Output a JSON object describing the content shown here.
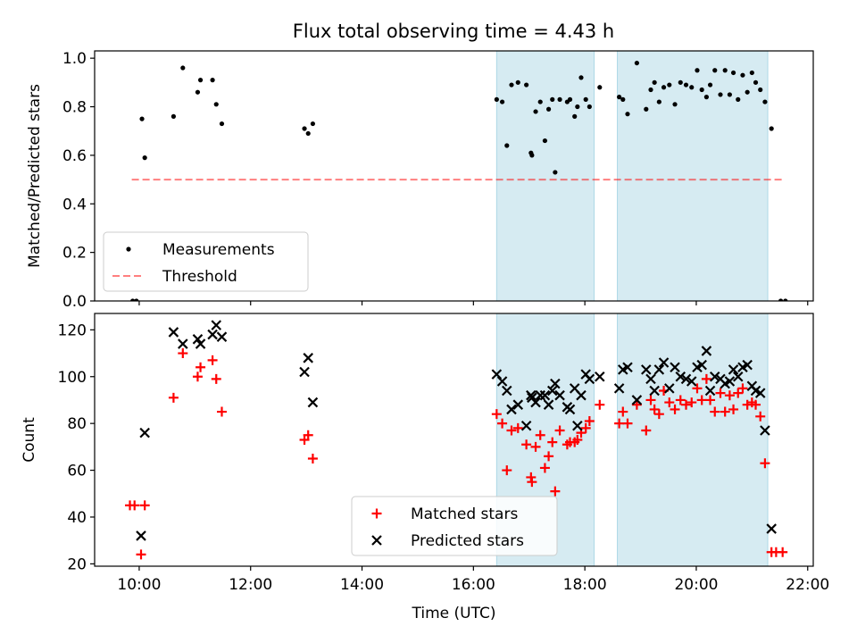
{
  "chart_data": [
    {
      "type": "scatter",
      "title": "Flux total observing time = 4.43 h",
      "xlabel": "",
      "ylabel": "Matched/Predicted stars",
      "xlim": [
        "09:12",
        "22:06"
      ],
      "ylim": [
        0,
        1.03
      ],
      "yticks": [
        0.0,
        0.2,
        0.4,
        0.6,
        0.8,
        1.0
      ],
      "ytick_labels": [
        "0.0",
        "0.2",
        "0.4",
        "0.6",
        "0.8",
        "1.0"
      ],
      "grid": false,
      "legend_position": "lower-left",
      "legend": [
        "Measurements",
        "Threshold"
      ],
      "shaded_intervals": [
        [
          "16:25",
          "18:10"
        ],
        [
          "18:35",
          "21:17"
        ]
      ],
      "threshold": {
        "name": "Threshold",
        "y": 0.5,
        "x_start": "09:52",
        "x_end": "21:35"
      },
      "series": [
        {
          "name": "Measurements",
          "points": [
            [
              "09:53",
              0.0
            ],
            [
              "09:57",
              0.0
            ],
            [
              "10:03",
              0.75
            ],
            [
              "10:06",
              0.59
            ],
            [
              "10:37",
              0.76
            ],
            [
              "10:47",
              0.96
            ],
            [
              "11:03",
              0.86
            ],
            [
              "11:06",
              0.91
            ],
            [
              "11:19",
              0.91
            ],
            [
              "11:23",
              0.81
            ],
            [
              "11:29",
              0.73
            ],
            [
              "12:58",
              0.71
            ],
            [
              "13:02",
              0.69
            ],
            [
              "13:07",
              0.73
            ],
            [
              "16:25",
              0.83
            ],
            [
              "16:31",
              0.82
            ],
            [
              "16:36",
              0.64
            ],
            [
              "16:41",
              0.89
            ],
            [
              "16:48",
              0.9
            ],
            [
              "16:57",
              0.89
            ],
            [
              "17:02",
              0.61
            ],
            [
              "17:03",
              0.6
            ],
            [
              "17:07",
              0.78
            ],
            [
              "17:12",
              0.82
            ],
            [
              "17:17",
              0.66
            ],
            [
              "17:21",
              0.79
            ],
            [
              "17:25",
              0.83
            ],
            [
              "17:28",
              0.53
            ],
            [
              "17:33",
              0.83
            ],
            [
              "17:41",
              0.82
            ],
            [
              "17:44",
              0.83
            ],
            [
              "17:49",
              0.76
            ],
            [
              "17:52",
              0.8
            ],
            [
              "17:56",
              0.92
            ],
            [
              "18:01",
              0.83
            ],
            [
              "18:05",
              0.8
            ],
            [
              "18:16",
              0.88
            ],
            [
              "18:37",
              0.84
            ],
            [
              "18:41",
              0.83
            ],
            [
              "18:46",
              0.77
            ],
            [
              "18:56",
              0.98
            ],
            [
              "19:06",
              0.79
            ],
            [
              "19:11",
              0.87
            ],
            [
              "19:15",
              0.9
            ],
            [
              "19:20",
              0.82
            ],
            [
              "19:25",
              0.88
            ],
            [
              "19:31",
              0.89
            ],
            [
              "19:37",
              0.81
            ],
            [
              "19:43",
              0.9
            ],
            [
              "19:49",
              0.89
            ],
            [
              "19:55",
              0.88
            ],
            [
              "20:01",
              0.95
            ],
            [
              "20:06",
              0.87
            ],
            [
              "20:11",
              0.84
            ],
            [
              "20:15",
              0.89
            ],
            [
              "20:20",
              0.95
            ],
            [
              "20:26",
              0.85
            ],
            [
              "20:31",
              0.95
            ],
            [
              "20:36",
              0.85
            ],
            [
              "20:40",
              0.94
            ],
            [
              "20:45",
              0.83
            ],
            [
              "20:50",
              0.93
            ],
            [
              "20:55",
              0.86
            ],
            [
              "21:00",
              0.94
            ],
            [
              "21:04",
              0.9
            ],
            [
              "21:09",
              0.87
            ],
            [
              "21:14",
              0.82
            ],
            [
              "21:21",
              0.71
            ],
            [
              "21:31",
              0.0
            ],
            [
              "21:36",
              0.0
            ]
          ]
        }
      ]
    },
    {
      "type": "scatter",
      "title": "",
      "xlabel": "Time (UTC)",
      "ylabel": "Count",
      "xlim": [
        "09:12",
        "22:06"
      ],
      "ylim": [
        19,
        127
      ],
      "yticks": [
        20,
        40,
        60,
        80,
        100,
        120
      ],
      "ytick_labels": [
        "20",
        "40",
        "60",
        "80",
        "100",
        "120"
      ],
      "xticks": [
        "10:00",
        "12:00",
        "14:00",
        "16:00",
        "18:00",
        "20:00",
        "22:00"
      ],
      "xtick_labels": [
        "10:00",
        "12:00",
        "14:00",
        "16:00",
        "18:00",
        "20:00",
        "22:00"
      ],
      "grid": false,
      "legend_position": "lower-center",
      "legend": [
        "Matched stars",
        "Predicted stars"
      ],
      "shaded_intervals": [
        [
          "16:25",
          "18:10"
        ],
        [
          "18:35",
          "21:17"
        ]
      ],
      "series": [
        {
          "name": "Matched stars",
          "color": "#ff0000",
          "marker": "plus",
          "points": [
            [
              "09:50",
              45
            ],
            [
              "09:55",
              45
            ],
            [
              "10:02",
              24
            ],
            [
              "10:06",
              45
            ],
            [
              "10:37",
              91
            ],
            [
              "10:47",
              110
            ],
            [
              "11:03",
              100
            ],
            [
              "11:06",
              104
            ],
            [
              "11:19",
              107
            ],
            [
              "11:23",
              99
            ],
            [
              "11:29",
              85
            ],
            [
              "12:58",
              73
            ],
            [
              "13:02",
              75
            ],
            [
              "13:07",
              65
            ],
            [
              "16:25",
              84
            ],
            [
              "16:31",
              80
            ],
            [
              "16:36",
              60
            ],
            [
              "16:41",
              77
            ],
            [
              "16:48",
              78
            ],
            [
              "16:57",
              71
            ],
            [
              "17:02",
              57
            ],
            [
              "17:03",
              55
            ],
            [
              "17:07",
              70
            ],
            [
              "17:12",
              75
            ],
            [
              "17:17",
              61
            ],
            [
              "17:21",
              66
            ],
            [
              "17:25",
              72
            ],
            [
              "17:28",
              51
            ],
            [
              "17:33",
              77
            ],
            [
              "17:41",
              71
            ],
            [
              "17:44",
              72
            ],
            [
              "17:49",
              72
            ],
            [
              "17:52",
              73
            ],
            [
              "17:56",
              76
            ],
            [
              "18:01",
              78
            ],
            [
              "18:05",
              81
            ],
            [
              "18:16",
              88
            ],
            [
              "18:37",
              80
            ],
            [
              "18:41",
              85
            ],
            [
              "18:46",
              80
            ],
            [
              "18:56",
              88
            ],
            [
              "19:06",
              77
            ],
            [
              "19:11",
              90
            ],
            [
              "19:15",
              86
            ],
            [
              "19:20",
              84
            ],
            [
              "19:25",
              94
            ],
            [
              "19:31",
              89
            ],
            [
              "19:37",
              86
            ],
            [
              "19:43",
              90
            ],
            [
              "19:49",
              88
            ],
            [
              "19:55",
              89
            ],
            [
              "20:01",
              95
            ],
            [
              "20:06",
              90
            ],
            [
              "20:11",
              99
            ],
            [
              "20:15",
              90
            ],
            [
              "20:20",
              85
            ],
            [
              "20:26",
              93
            ],
            [
              "20:31",
              85
            ],
            [
              "20:36",
              92
            ],
            [
              "20:40",
              86
            ],
            [
              "20:45",
              93
            ],
            [
              "20:50",
              95
            ],
            [
              "20:55",
              88
            ],
            [
              "21:00",
              89
            ],
            [
              "21:04",
              88
            ],
            [
              "21:09",
              83
            ],
            [
              "21:14",
              63
            ],
            [
              "21:21",
              25
            ],
            [
              "21:26",
              25
            ],
            [
              "21:33",
              25
            ]
          ]
        },
        {
          "name": "Predicted stars",
          "color": "#000000",
          "marker": "x",
          "points": [
            [
              "10:02",
              32
            ],
            [
              "10:06",
              76
            ],
            [
              "10:37",
              119
            ],
            [
              "10:47",
              114
            ],
            [
              "11:03",
              116
            ],
            [
              "11:06",
              114
            ],
            [
              "11:19",
              118
            ],
            [
              "11:23",
              122
            ],
            [
              "11:29",
              117
            ],
            [
              "12:58",
              102
            ],
            [
              "13:02",
              108
            ],
            [
              "13:07",
              89
            ],
            [
              "16:25",
              101
            ],
            [
              "16:31",
              98
            ],
            [
              "16:36",
              94
            ],
            [
              "16:41",
              86
            ],
            [
              "16:48",
              88
            ],
            [
              "16:57",
              79
            ],
            [
              "17:02",
              92
            ],
            [
              "17:03",
              91
            ],
            [
              "17:07",
              89
            ],
            [
              "17:12",
              92
            ],
            [
              "17:17",
              92
            ],
            [
              "17:21",
              88
            ],
            [
              "17:25",
              94
            ],
            [
              "17:28",
              97
            ],
            [
              "17:33",
              92
            ],
            [
              "17:41",
              87
            ],
            [
              "17:44",
              86
            ],
            [
              "17:49",
              95
            ],
            [
              "17:52",
              79
            ],
            [
              "17:56",
              92
            ],
            [
              "18:01",
              101
            ],
            [
              "18:05",
              99
            ],
            [
              "18:16",
              100
            ],
            [
              "18:37",
              95
            ],
            [
              "18:41",
              103
            ],
            [
              "18:46",
              104
            ],
            [
              "18:56",
              90
            ],
            [
              "19:06",
              103
            ],
            [
              "19:11",
              99
            ],
            [
              "19:15",
              94
            ],
            [
              "19:20",
              103
            ],
            [
              "19:25",
              106
            ],
            [
              "19:31",
              95
            ],
            [
              "19:37",
              104
            ],
            [
              "19:43",
              100
            ],
            [
              "19:49",
              99
            ],
            [
              "19:55",
              98
            ],
            [
              "20:01",
              104
            ],
            [
              "20:06",
              105
            ],
            [
              "20:11",
              111
            ],
            [
              "20:15",
              94
            ],
            [
              "20:20",
              100
            ],
            [
              "20:26",
              99
            ],
            [
              "20:31",
              97
            ],
            [
              "20:36",
              98
            ],
            [
              "20:40",
              103
            ],
            [
              "20:45",
              100
            ],
            [
              "20:50",
              104
            ],
            [
              "20:55",
              105
            ],
            [
              "21:00",
              96
            ],
            [
              "21:04",
              94
            ],
            [
              "21:09",
              93
            ],
            [
              "21:14",
              77
            ],
            [
              "21:21",
              35
            ]
          ]
        }
      ]
    }
  ]
}
